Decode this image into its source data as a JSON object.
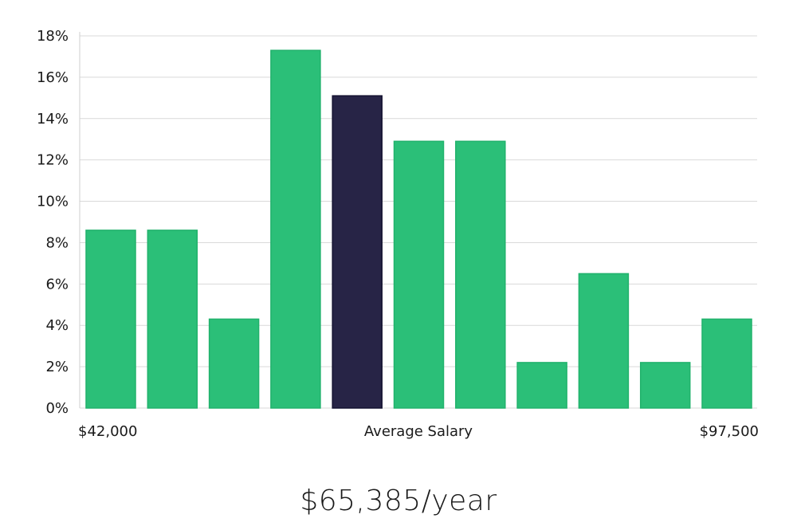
{
  "headline": {
    "value": "$65,385/year"
  },
  "colors": {
    "bar": "#2bbf78",
    "bar_border": "#21b26c",
    "highlight": "#272446",
    "highlight_border": "#141230",
    "grid": "#d9d9d9"
  },
  "chart_data": {
    "type": "bar",
    "title": "",
    "xlabel": "Average Salary",
    "ylabel": "",
    "x_min_label": "$42,000",
    "x_max_label": "$97,500",
    "bins": 11,
    "values": [
      8.6,
      8.6,
      4.3,
      17.3,
      15.1,
      12.9,
      12.9,
      2.2,
      6.5,
      2.2,
      4.3
    ],
    "highlight_index": 4,
    "ylim": [
      0,
      18
    ],
    "yticks": [
      0,
      2,
      4,
      6,
      8,
      10,
      12,
      14,
      16,
      18
    ],
    "ytick_labels": [
      "0%",
      "2%",
      "4%",
      "6%",
      "8%",
      "10%",
      "12%",
      "14%",
      "16%",
      "18%"
    ],
    "grid": true,
    "legend": "none"
  }
}
